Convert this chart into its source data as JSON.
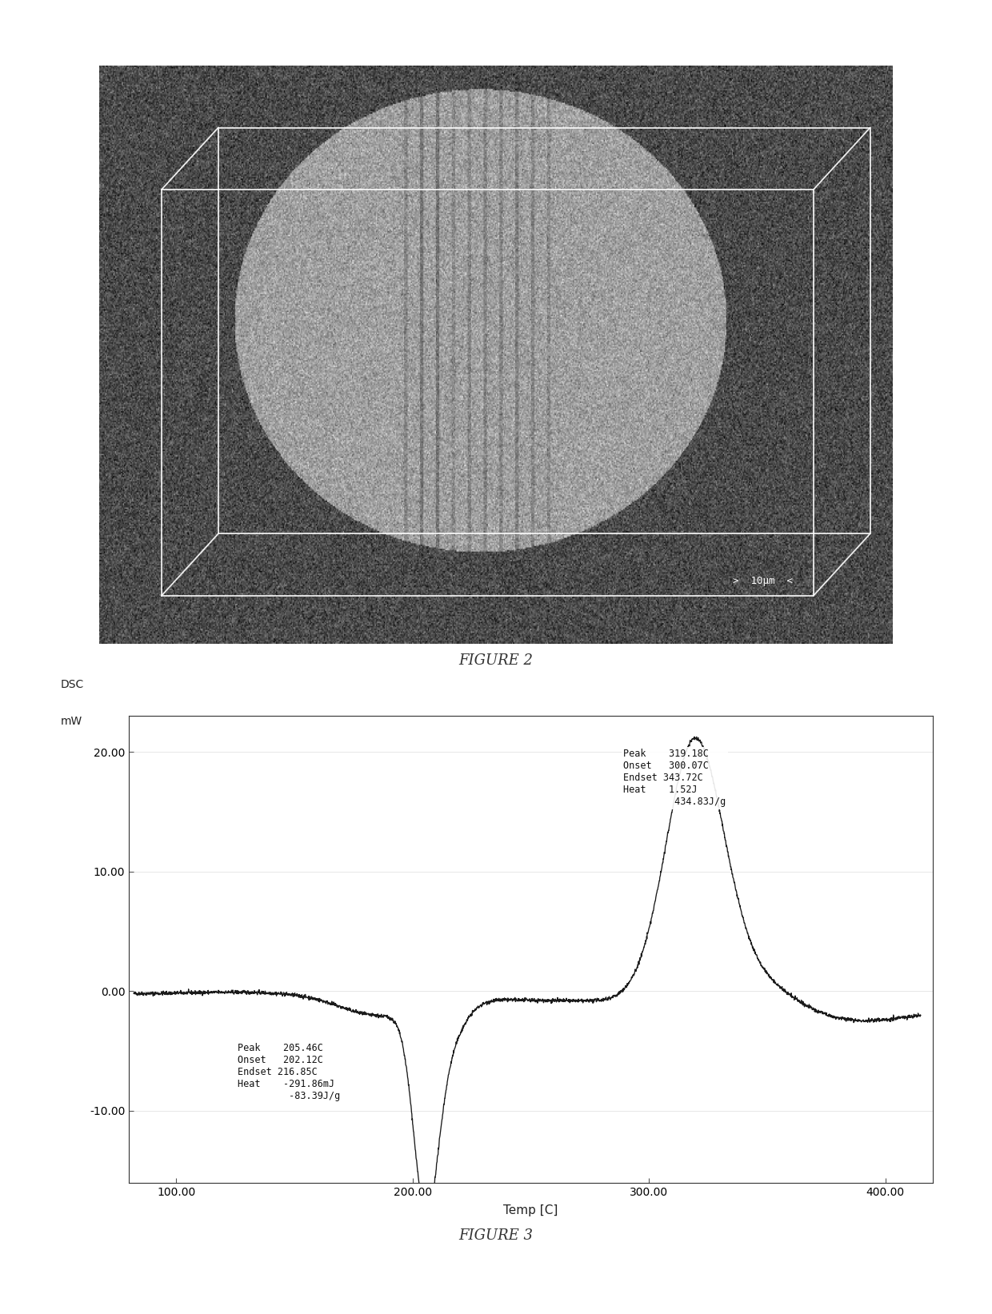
{
  "fig2_caption": "FIGURE 2",
  "fig3_caption": "FIGURE 3",
  "dsc_ylabel_line1": "DSC",
  "dsc_ylabel_line2": "mW",
  "xlabel": "Temp [C]",
  "xlim": [
    80,
    420
  ],
  "ylim": [
    -16,
    23
  ],
  "xticks": [
    100.0,
    200.0,
    300.0,
    400.0
  ],
  "xtick_labels": [
    "100.00",
    "200.00",
    "300.00",
    "400.00"
  ],
  "yticks": [
    -10.0,
    0.0,
    10.0,
    20.0
  ],
  "ytick_labels": [
    "-10.00",
    "0.00",
    "10.00",
    "20.00"
  ],
  "annotation_peak1": {
    "label": "Peak",
    "value": "205.46C",
    "label2": "Onset",
    "value2": "202.12C",
    "label3": "Endset",
    "value3": "216.85C",
    "label4": "Heat",
    "value4": "-291.86mJ",
    "value5": "-83.39J/g"
  },
  "annotation_peak2": {
    "label": "Peak",
    "value": "319.18C",
    "label2": "Onset",
    "value2": "300.07C",
    "label3": "Endset",
    "value3": "343.72C",
    "label4": "Heat",
    "value4": "1.52J",
    "value5": "434.83J/g"
  },
  "background_color": "#ffffff",
  "line_color": "#1a1a1a"
}
